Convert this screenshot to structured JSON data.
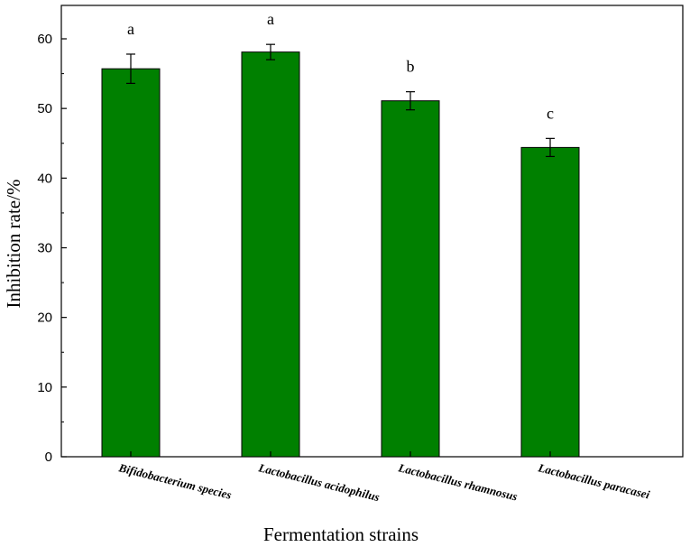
{
  "chart_data": {
    "type": "bar",
    "xlabel": "Fermentation strains",
    "ylabel": "Inhibition rate/%",
    "ylim": [
      0,
      60
    ],
    "yticks": [
      0,
      10,
      20,
      30,
      40,
      50,
      60
    ],
    "categories": [
      "Bifidobacterium species",
      "Lactobacillus acidophilus",
      "Lactobacillus rhamnosus",
      "Lactobacillus paracasei"
    ],
    "values": [
      55.7,
      58.1,
      51.1,
      44.4
    ],
    "errors": [
      2.1,
      1.1,
      1.3,
      1.3
    ],
    "significance": [
      "a",
      "a",
      "b",
      "c"
    ],
    "bar_color": "#008000",
    "grid": false
  }
}
